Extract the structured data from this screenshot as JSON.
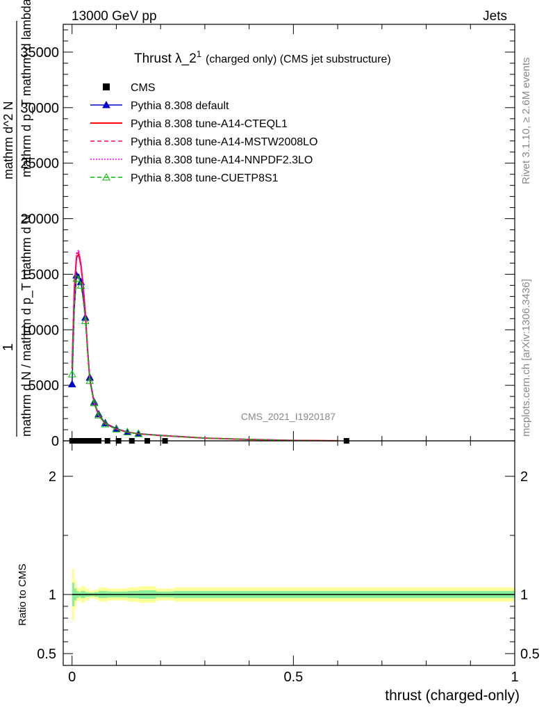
{
  "header": {
    "energy": "13000 GeV pp",
    "category": "Jets"
  },
  "side": {
    "rivet": "Rivet 3.1.10, ≥ 2.6M events",
    "site": "mcplots.cern.ch [arXiv:1306.3436]"
  },
  "chart_data": {
    "type": "line",
    "title": "Thrust λ_2",
    "title_sup": "1",
    "subtitle": "(charged only) (CMS jet substructure)",
    "watermark": "CMS_2021_I1920187",
    "xlabel": "thrust (charged-only)",
    "ylabel_lines": [
      "1",
      "mathrm d N / mathrm d p_T mathrm d N",
      "mathrm d^2 N",
      "mathrm d p_T mathrm d lambda"
    ],
    "ratio_ylabel": "Ratio to CMS",
    "xlim": [
      -0.02,
      1.0
    ],
    "ylim": [
      0,
      37500
    ],
    "ratio_ylim": [
      0.4,
      2.3
    ],
    "x_ticks": [
      "0",
      "0.5",
      "1"
    ],
    "y_ticks": [
      "0",
      "5000",
      "10000",
      "15000",
      "20000",
      "25000",
      "30000",
      "35000"
    ],
    "ratio_ticks": [
      "0.5",
      "1",
      "2"
    ],
    "x": [
      0.0,
      0.005,
      0.01,
      0.015,
      0.02,
      0.025,
      0.03,
      0.035,
      0.04,
      0.05,
      0.06,
      0.075,
      0.1,
      0.125,
      0.15,
      0.2,
      0.25,
      0.3,
      0.4,
      0.5,
      0.6
    ],
    "series": [
      {
        "name": "CMS",
        "color": "#000000",
        "style": "marker",
        "values": [
          0,
          0,
          0,
          0,
          0,
          0,
          0,
          0,
          0,
          0,
          0,
          0,
          0,
          0,
          0,
          0,
          0,
          0,
          0,
          0,
          0
        ]
      },
      {
        "name": "Pythia 8.308 default",
        "color": "#0000cc",
        "style": "solid-tri",
        "values": [
          5100,
          11800,
          14900,
          15000,
          14300,
          13000,
          11100,
          8400,
          5700,
          3500,
          2400,
          1600,
          1100,
          800,
          650,
          500,
          380,
          250,
          130,
          40,
          5
        ]
      },
      {
        "name": "Pythia 8.308 tune-A14-CTEQL1",
        "color": "#ff0000",
        "style": "solid",
        "values": [
          6500,
          13500,
          16500,
          16800,
          15800,
          14000,
          11500,
          8200,
          5500,
          3400,
          2300,
          1550,
          1050,
          780,
          630,
          480,
          360,
          240,
          125,
          38,
          5
        ]
      },
      {
        "name": "Pythia 8.308 tune-A14-MSTW2008LO",
        "color": "#ff0066",
        "style": "dashed",
        "values": [
          6800,
          14000,
          16800,
          17000,
          16000,
          14100,
          11600,
          8200,
          5500,
          3400,
          2300,
          1550,
          1050,
          780,
          630,
          480,
          360,
          240,
          125,
          38,
          5
        ]
      },
      {
        "name": "Pythia 8.308 tune-A14-NNPDF2.3LO",
        "color": "#ff00ff",
        "style": "dotted",
        "values": [
          6600,
          13800,
          16900,
          17200,
          16100,
          14200,
          11700,
          8300,
          5500,
          3400,
          2300,
          1550,
          1050,
          780,
          630,
          480,
          360,
          240,
          125,
          38,
          5
        ]
      },
      {
        "name": "Pythia 8.308 tune-CUETP8S1",
        "color": "#00bb00",
        "style": "dashed-tri",
        "values": [
          6000,
          12000,
          14600,
          14800,
          14000,
          12700,
          10800,
          8000,
          5400,
          3400,
          2300,
          1500,
          1050,
          780,
          630,
          480,
          360,
          240,
          125,
          38,
          5
        ]
      }
    ],
    "cms_marker_x": [
      0.0,
      0.005,
      0.01,
      0.015,
      0.02,
      0.025,
      0.03,
      0.04,
      0.05,
      0.06,
      0.08,
      0.105,
      0.135,
      0.17,
      0.21,
      0.62
    ],
    "cms_marker_y": [
      0,
      0,
      0,
      0,
      0,
      0,
      0,
      0,
      0,
      0,
      0,
      0,
      0,
      0,
      0,
      0
    ],
    "ratio_band": {
      "x_edges": [
        0.0,
        0.005,
        0.01,
        0.015,
        0.02,
        0.03,
        0.04,
        0.05,
        0.06,
        0.08,
        0.1,
        0.125,
        0.15,
        0.19,
        0.23,
        1.0
      ],
      "outer": [
        0.22,
        0.12,
        0.06,
        0.05,
        0.07,
        0.05,
        0.03,
        0.04,
        0.06,
        0.05,
        0.05,
        0.06,
        0.07,
        0.05,
        0.06
      ],
      "inner": [
        0.1,
        0.05,
        0.03,
        0.02,
        0.03,
        0.02,
        0.015,
        0.02,
        0.03,
        0.025,
        0.025,
        0.03,
        0.035,
        0.025,
        0.03
      ]
    }
  }
}
